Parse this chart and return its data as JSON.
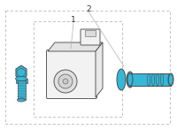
{
  "background_color": "#ffffff",
  "box_color": "#b0b0b0",
  "part_blue": "#35b8d8",
  "part_outline": "#4a4a4a",
  "sensor_fill": "#f2f2f2",
  "sensor_edge": "#5a5a5a",
  "label_1": "1",
  "label_2": "2",
  "fig_width": 2.0,
  "fig_height": 1.47,
  "dpi": 100
}
